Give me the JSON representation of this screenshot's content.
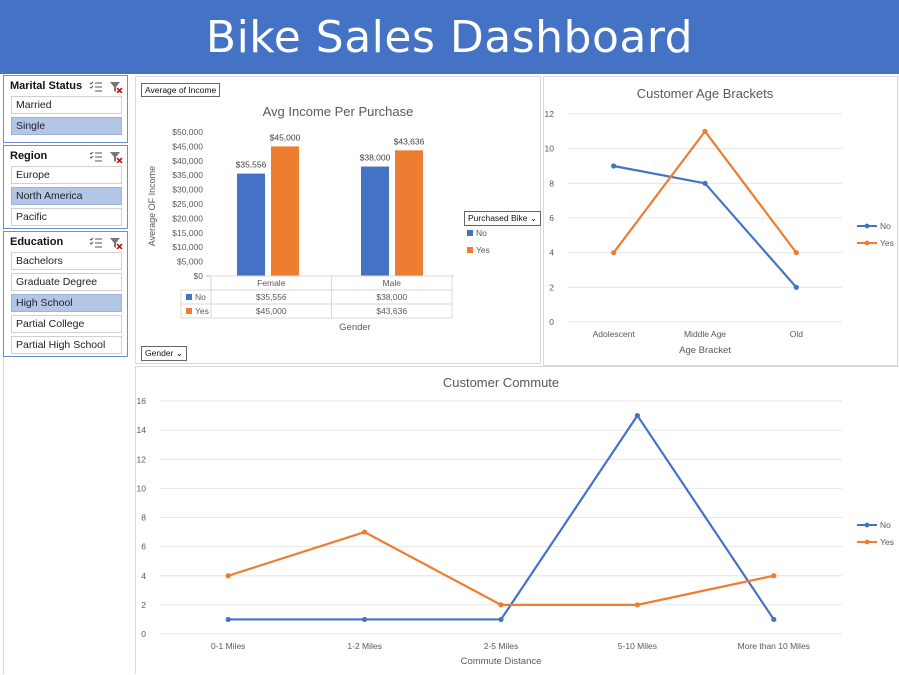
{
  "page": {
    "title": "Bike Sales Dashboard"
  },
  "colors": {
    "header": "#4472c4",
    "no": "#4472c4",
    "yes": "#ed7d31",
    "selected": "#b4c6e7"
  },
  "slicers": {
    "marital": {
      "title": "Marital Status",
      "items": [
        {
          "label": "Married",
          "selected": false
        },
        {
          "label": "Single",
          "selected": true
        }
      ]
    },
    "region": {
      "title": "Region",
      "items": [
        {
          "label": "Europe",
          "selected": false
        },
        {
          "label": "North America",
          "selected": true
        },
        {
          "label": "Pacific",
          "selected": false
        }
      ]
    },
    "education": {
      "title": "Education",
      "items": [
        {
          "label": "Bachelors",
          "selected": false
        },
        {
          "label": "Graduate Degree",
          "selected": false
        },
        {
          "label": "High School",
          "selected": true
        },
        {
          "label": "Partial College",
          "selected": false
        },
        {
          "label": "Partial High School",
          "selected": false
        }
      ]
    }
  },
  "income_panel": {
    "value_field_button": "Average of Income",
    "legend_filter": "Purchased Bike",
    "axis_filter": "Gender"
  },
  "chart_data": [
    {
      "type": "bar",
      "title": "Avg Income Per Purchase",
      "xlabel": "Gender",
      "ylabel": "Average OF Income",
      "categories": [
        "Female",
        "Male"
      ],
      "series": [
        {
          "name": "No",
          "values": [
            35556,
            38000
          ],
          "labels": [
            "$35,556",
            "$38,000"
          ]
        },
        {
          "name": "Yes",
          "values": [
            45000,
            43636
          ],
          "labels": [
            "$45,000",
            "$43,636"
          ]
        }
      ],
      "ylim": [
        0,
        50000
      ],
      "yticks": [
        "$0",
        "$5,000",
        "$10,000",
        "$15,000",
        "$20,000",
        "$25,000",
        "$30,000",
        "$35,000",
        "$40,000",
        "$45,000",
        "$50,000"
      ],
      "data_table": true
    },
    {
      "type": "line",
      "title": "Customer Age Brackets",
      "xlabel": "Age Bracket",
      "ylabel": "",
      "categories": [
        "Adolescent",
        "Middle Age",
        "Old"
      ],
      "series": [
        {
          "name": "No",
          "values": [
            9,
            8,
            2
          ]
        },
        {
          "name": "Yes",
          "values": [
            4,
            11,
            4
          ]
        }
      ],
      "ylim": [
        0,
        12
      ],
      "yticks": [
        "0",
        "2",
        "4",
        "6",
        "8",
        "10",
        "12"
      ],
      "legend": "right"
    },
    {
      "type": "line",
      "title": "Customer Commute",
      "xlabel": "Commute Distance",
      "ylabel": "",
      "categories": [
        "0-1 Miles",
        "1-2 Miles",
        "2-5 Miles",
        "5-10 Miles",
        "More than 10 Miles"
      ],
      "series": [
        {
          "name": "No",
          "values": [
            1,
            1,
            1,
            15,
            1
          ]
        },
        {
          "name": "Yes",
          "values": [
            4,
            7,
            2,
            2,
            4
          ]
        }
      ],
      "ylim": [
        0,
        16
      ],
      "yticks": [
        "0",
        "2",
        "4",
        "6",
        "8",
        "10",
        "12",
        "14",
        "16"
      ],
      "legend": "right"
    }
  ]
}
